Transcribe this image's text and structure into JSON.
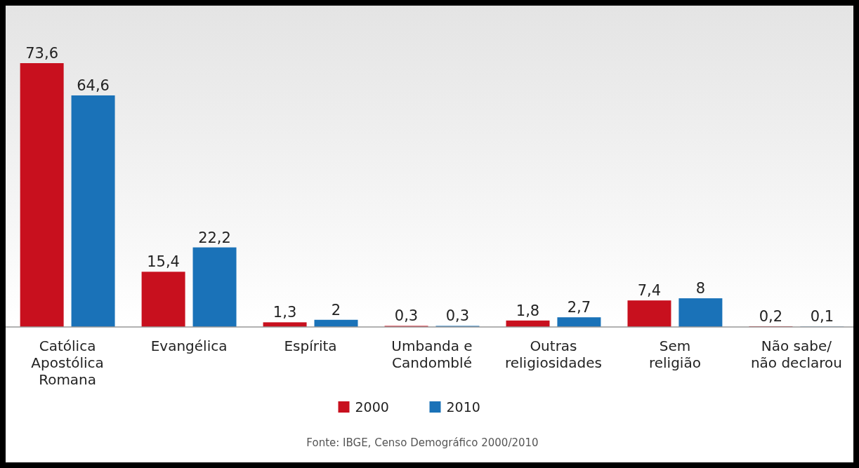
{
  "chart_data": {
    "type": "bar",
    "categories": [
      "Católica\nApostólica\nRomana",
      "Evangélica",
      "Espírita",
      "Umbanda e\nCandomblé",
      "Outras\nreligiosidades",
      "Sem\nreligião",
      "Não sabe/\nnão declarou"
    ],
    "series": [
      {
        "name": "2000",
        "color": "#c8101e",
        "values": [
          73.6,
          15.4,
          1.3,
          0.3,
          1.8,
          7.4,
          0.2
        ],
        "value_labels": [
          "73,6",
          "15,4",
          "1,3",
          "0,3",
          "1,8",
          "7,4",
          "0,2"
        ]
      },
      {
        "name": "2010",
        "color": "#1a72b8",
        "values": [
          64.6,
          22.2,
          2,
          0.3,
          2.7,
          8,
          0.1
        ],
        "value_labels": [
          "64,6",
          "22,2",
          "2",
          "0,3",
          "2,7",
          "8",
          "0,1"
        ]
      }
    ],
    "legend": "bottom",
    "annotations": [
      "Fonte: IBGE, Censo Demográfico 2000/2010"
    ]
  }
}
